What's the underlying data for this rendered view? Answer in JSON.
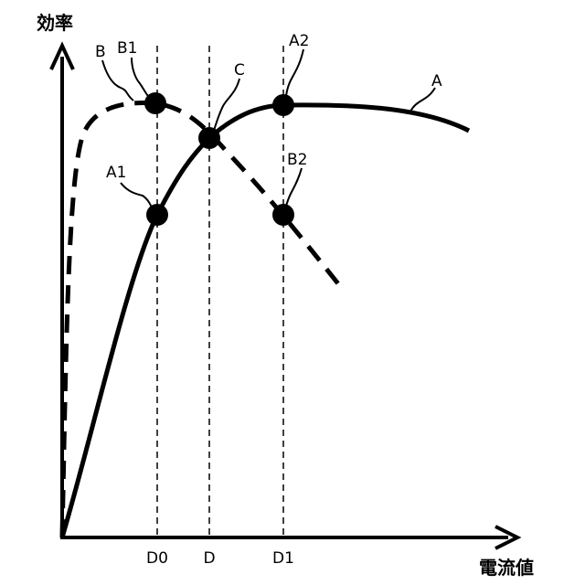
{
  "chart_data": {
    "type": "line",
    "ylabel": "効率",
    "xlabel": "電流値",
    "xticks": [
      "D0",
      "D",
      "D1"
    ],
    "series": [
      {
        "name": "A",
        "style": "solid"
      },
      {
        "name": "B",
        "style": "dashed"
      }
    ],
    "points": [
      {
        "label": "B1",
        "curve": "B",
        "at": "D0"
      },
      {
        "label": "A1",
        "curve": "A",
        "at": "D0"
      },
      {
        "label": "C",
        "curve": "A/B",
        "at": "D"
      },
      {
        "label": "A2",
        "curve": "A",
        "at": "D1"
      },
      {
        "label": "B2",
        "curve": "B",
        "at": "D1"
      }
    ],
    "grid": false,
    "legend": "none",
    "colors": {
      "line": "#000000"
    }
  }
}
